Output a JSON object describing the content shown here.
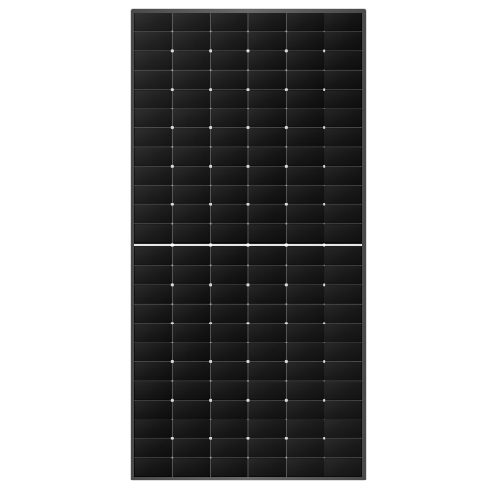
{
  "image": {
    "subject": "",
    "frame_color": "#5a5a5a",
    "cell_color": "#141414",
    "cell_highlight": "#2a2a2a",
    "busbar_color": "#d8d8d8",
    "divider_color": "#e6e6e6",
    "columns": 6,
    "rows_per_half": 12,
    "halves": 2
  }
}
